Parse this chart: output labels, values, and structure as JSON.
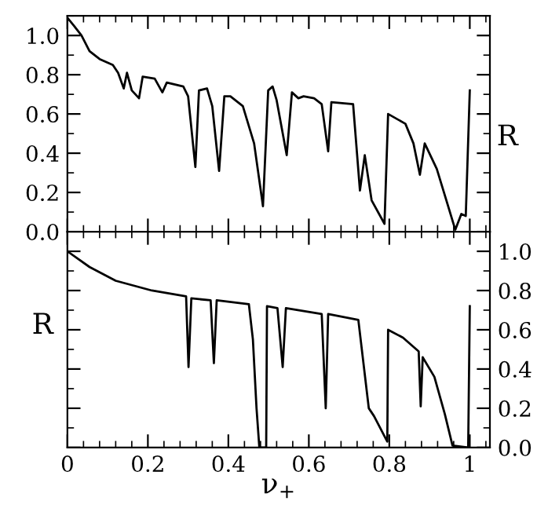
{
  "chart_data": [
    {
      "type": "line",
      "ylabel": "R",
      "tick_labels": "y",
      "xlim": [
        0,
        1.05
      ],
      "xticks": [
        {
          "value": 0,
          "label": null
        },
        {
          "value": 0.2,
          "label": null
        },
        {
          "value": 0.4,
          "label": null
        },
        {
          "value": 0.6,
          "label": null
        },
        {
          "value": 0.8,
          "label": null
        },
        {
          "value": 1,
          "label": null
        }
      ],
      "ylim": [
        0,
        1.1
      ],
      "yticks": [
        {
          "value": 0,
          "label": "0.0"
        },
        {
          "value": 0.2,
          "label": "0.2"
        },
        {
          "value": 0.4,
          "label": "0.4"
        },
        {
          "value": 0.6,
          "label": "0.6"
        },
        {
          "value": 0.8,
          "label": "0.8"
        },
        {
          "value": 1,
          "label": "1.0"
        }
      ],
      "grid": false,
      "legend": false,
      "series": [
        {
          "color": "#000000",
          "x": [
            0,
            0.016,
            0.035,
            0.055,
            0.08,
            0.113,
            0.126,
            0.14,
            0.148,
            0.16,
            0.178,
            0.187,
            0.217,
            0.236,
            0.247,
            0.288,
            0.3,
            0.318,
            0.327,
            0.347,
            0.36,
            0.377,
            0.39,
            0.405,
            0.436,
            0.464,
            0.486,
            0.499,
            0.51,
            0.52,
            0.545,
            0.558,
            0.574,
            0.587,
            0.613,
            0.632,
            0.648,
            0.656,
            0.71,
            0.727,
            0.739,
            0.756,
            0.788,
            0.797,
            0.84,
            0.86,
            0.876,
            0.888,
            0.918,
            0.964,
            0.979,
            0.99,
            1.0
          ],
          "values": [
            1.09,
            1.05,
            1.0,
            0.92,
            0.88,
            0.85,
            0.81,
            0.73,
            0.81,
            0.72,
            0.68,
            0.79,
            0.78,
            0.71,
            0.76,
            0.74,
            0.69,
            0.33,
            0.72,
            0.73,
            0.64,
            0.31,
            0.69,
            0.69,
            0.64,
            0.45,
            0.13,
            0.72,
            0.74,
            0.67,
            0.39,
            0.71,
            0.68,
            0.69,
            0.68,
            0.65,
            0.41,
            0.66,
            0.65,
            0.21,
            0.39,
            0.16,
            0.04,
            0.6,
            0.55,
            0.45,
            0.29,
            0.45,
            0.32,
            0.01,
            0.09,
            0.08,
            0.72
          ]
        }
      ]
    },
    {
      "type": "line",
      "ylabel": "R",
      "xlabel": "ν$_{+}$",
      "xlim": [
        0,
        1.05
      ],
      "xticks": [
        0,
        0.2,
        0.4,
        0.6,
        0.8,
        1
      ],
      "ylim": [
        0,
        1.1
      ],
      "yticks": [
        {
          "value": 0,
          "label": "0.0"
        },
        {
          "value": 0.2,
          "label": "0.2"
        },
        {
          "value": 0.4,
          "label": "0.4"
        },
        {
          "value": 0.6,
          "label": "0.6"
        },
        {
          "value": 0.8,
          "label": "0.8"
        },
        {
          "value": 1,
          "label": "1.0"
        }
      ],
      "grid": false,
      "legend": false,
      "series": [
        {
          "color": "#000000",
          "x": [
            0,
            0.055,
            0.12,
            0.21,
            0.295,
            0.301,
            0.308,
            0.356,
            0.364,
            0.371,
            0.451,
            0.461,
            0.47,
            0.477,
            0.494,
            0.496,
            0.522,
            0.535,
            0.543,
            0.632,
            0.642,
            0.648,
            0.723,
            0.749,
            0.762,
            0.795,
            0.797,
            0.834,
            0.873,
            0.878,
            0.883,
            0.912,
            0.938,
            0.957,
            0.996,
            1.0
          ],
          "values": [
            1.0,
            0.92,
            0.85,
            0.8,
            0.77,
            0.41,
            0.76,
            0.75,
            0.43,
            0.75,
            0.73,
            0.55,
            0.2,
            0.0,
            0.0,
            0.72,
            0.71,
            0.41,
            0.71,
            0.68,
            0.2,
            0.68,
            0.65,
            0.2,
            0.16,
            0.03,
            0.6,
            0.56,
            0.49,
            0.21,
            0.46,
            0.36,
            0.17,
            0.01,
            0.0,
            0.72
          ]
        }
      ]
    }
  ]
}
